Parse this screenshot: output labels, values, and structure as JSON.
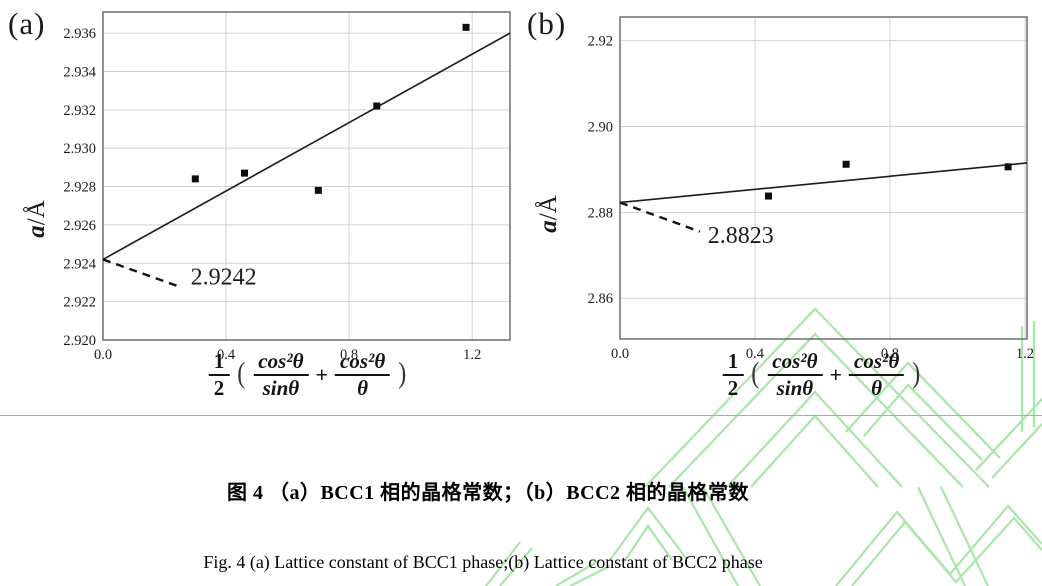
{
  "figure": {
    "panel_a_tag": "(a)",
    "panel_b_tag": "(b)",
    "y_axis_label_var": "a",
    "y_axis_label_unit": "/Å",
    "caption_cn": "图 4 （a）BCC1 相的晶格常数；（b）BCC2 相的晶格常数",
    "caption_en": "Fig. 4 (a) Lattice constant of BCC1 phase;(b) Lattice constant of BCC2 phase"
  },
  "formula": {
    "half_num": "1",
    "half_den": "2",
    "open_paren": "(",
    "frac1_num": "cos²θ",
    "frac1_den": "sinθ",
    "plus": "+",
    "frac2_num": "cos²θ",
    "frac2_den": "θ",
    "close_paren": ")"
  },
  "colors": {
    "watermark_green": "#9be29b",
    "gridline": "#d2d2d2",
    "plot_border": "#6e6e6e",
    "ink": "#111111"
  },
  "chart_data": [
    {
      "panel": "a",
      "type": "scatter",
      "title": "(a) Lattice constant of BCC1 phase",
      "xlabel": "1/2 (cos²θ/sinθ + cos²θ/θ)",
      "ylabel": "a/Å",
      "xlim": [
        0,
        1.323
      ],
      "ylim": [
        2.92,
        2.9371
      ],
      "x_ticks": [
        0.0,
        0.4,
        0.8,
        1.2
      ],
      "x_tick_labels": [
        "0.0",
        "0.4",
        "0.8",
        "1.2"
      ],
      "y_ticks": [
        2.92,
        2.922,
        2.924,
        2.926,
        2.928,
        2.93,
        2.932,
        2.934,
        2.936
      ],
      "y_tick_labels": [
        "2.920",
        "2.922",
        "2.924",
        "2.926",
        "2.928",
        "2.930",
        "2.932",
        "2.934",
        "2.936"
      ],
      "grid": {
        "v": [
          0.4,
          0.8,
          1.2
        ],
        "h": [
          2.922,
          2.924,
          2.926,
          2.928,
          2.93,
          2.932,
          2.934,
          2.936
        ]
      },
      "points": [
        [
          0.3,
          2.9284
        ],
        [
          0.46,
          2.9287
        ],
        [
          0.7,
          2.9278
        ],
        [
          0.89,
          2.9322
        ],
        [
          1.18,
          2.9363
        ]
      ],
      "fit_line": {
        "x": [
          0,
          1.323
        ],
        "y": [
          2.9242,
          2.936
        ]
      },
      "annotation": {
        "label": "2.9242",
        "intercept_value": 2.9242,
        "leader": [
          [
            0,
            2.9242
          ],
          [
            0.245,
            2.9228
          ]
        ],
        "text_pos": [
          0.285,
          2.9229
        ]
      }
    },
    {
      "panel": "b",
      "type": "scatter",
      "title": "(b) Lattice constant of BCC2 phase",
      "xlabel": "1/2 (cos²θ/sinθ + cos²θ/θ)",
      "ylabel": "a/Å",
      "xlim": [
        0,
        1.206
      ],
      "ylim": [
        2.8505,
        2.9255
      ],
      "x_ticks": [
        0.0,
        0.4,
        0.8,
        1.2
      ],
      "x_tick_labels": [
        "0.0",
        "0.4",
        "0.8",
        "1.2"
      ],
      "y_ticks": [
        2.86,
        2.88,
        2.9,
        2.92
      ],
      "y_tick_labels": [
        "2.86",
        "2.88",
        "2.90",
        "2.92"
      ],
      "grid": {
        "v": [
          0.4,
          0.8,
          1.2
        ],
        "h": [
          2.86,
          2.88,
          2.9,
          2.92
        ]
      },
      "points": [
        [
          0.44,
          2.8838
        ],
        [
          0.67,
          2.8912
        ],
        [
          1.15,
          2.8906
        ]
      ],
      "fit_line": {
        "x": [
          0,
          1.206
        ],
        "y": [
          2.8823,
          2.8915
        ]
      },
      "annotation": {
        "label": "2.8823",
        "intercept_value": 2.8823,
        "leader": [
          [
            0,
            2.8823
          ],
          [
            0.237,
            2.8755
          ]
        ],
        "text_pos": [
          0.26,
          2.8729
        ]
      }
    }
  ]
}
